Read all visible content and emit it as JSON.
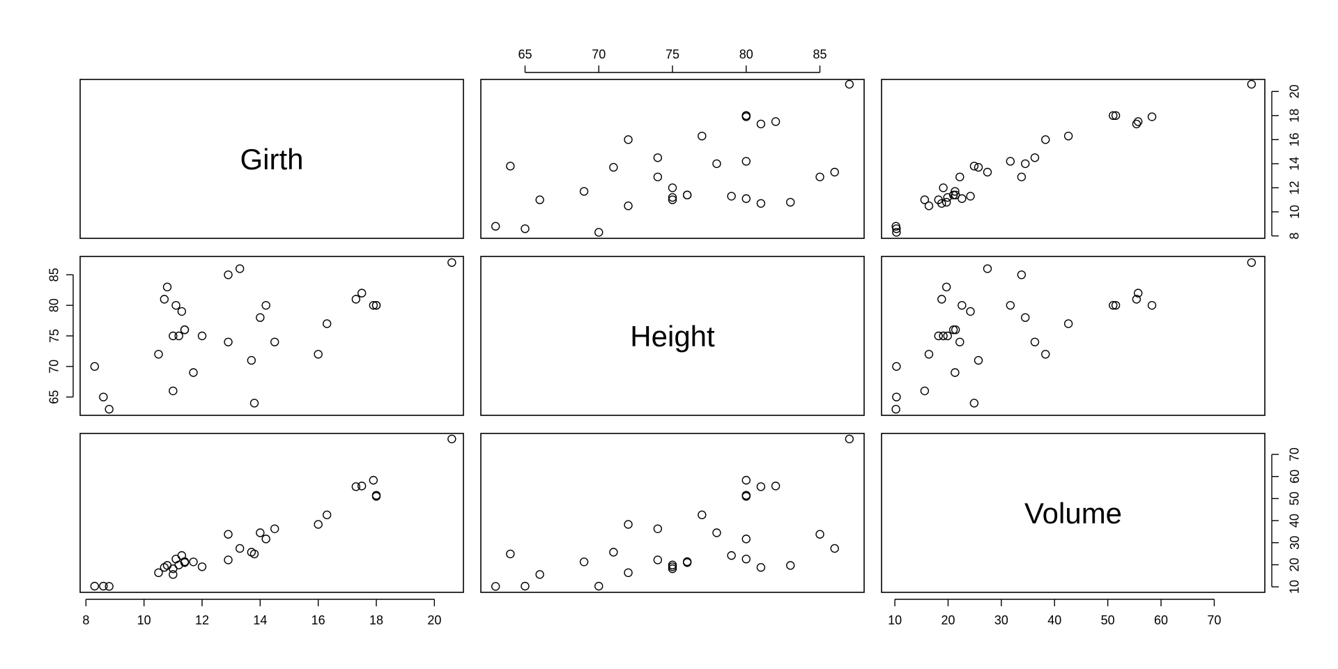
{
  "chart_data": {
    "type": "scatter",
    "variables": [
      {
        "name": "Girth",
        "lim": [
          7.8,
          21.0
        ],
        "ticks": [
          8,
          10,
          12,
          14,
          16,
          18,
          20
        ]
      },
      {
        "name": "Height",
        "lim": [
          62.0,
          88.0
        ],
        "ticks": [
          65,
          70,
          75,
          80,
          85
        ]
      },
      {
        "name": "Volume",
        "lim": [
          7.5,
          79.5
        ],
        "ticks": [
          10,
          20,
          30,
          40,
          50,
          60,
          70
        ]
      }
    ],
    "observations": [
      {
        "Girth": 8.3,
        "Height": 70,
        "Volume": 10.3
      },
      {
        "Girth": 8.6,
        "Height": 65,
        "Volume": 10.3
      },
      {
        "Girth": 8.8,
        "Height": 63,
        "Volume": 10.2
      },
      {
        "Girth": 10.5,
        "Height": 72,
        "Volume": 16.4
      },
      {
        "Girth": 10.7,
        "Height": 81,
        "Volume": 18.8
      },
      {
        "Girth": 10.8,
        "Height": 83,
        "Volume": 19.7
      },
      {
        "Girth": 11.0,
        "Height": 66,
        "Volume": 15.6
      },
      {
        "Girth": 11.0,
        "Height": 75,
        "Volume": 18.2
      },
      {
        "Girth": 11.1,
        "Height": 80,
        "Volume": 22.6
      },
      {
        "Girth": 11.2,
        "Height": 75,
        "Volume": 19.9
      },
      {
        "Girth": 11.3,
        "Height": 79,
        "Volume": 24.2
      },
      {
        "Girth": 11.4,
        "Height": 76,
        "Volume": 21.0
      },
      {
        "Girth": 11.4,
        "Height": 76,
        "Volume": 21.4
      },
      {
        "Girth": 11.7,
        "Height": 69,
        "Volume": 21.3
      },
      {
        "Girth": 12.0,
        "Height": 75,
        "Volume": 19.1
      },
      {
        "Girth": 12.9,
        "Height": 74,
        "Volume": 22.2
      },
      {
        "Girth": 12.9,
        "Height": 85,
        "Volume": 33.8
      },
      {
        "Girth": 13.3,
        "Height": 86,
        "Volume": 27.4
      },
      {
        "Girth": 13.7,
        "Height": 71,
        "Volume": 25.7
      },
      {
        "Girth": 13.8,
        "Height": 64,
        "Volume": 24.9
      },
      {
        "Girth": 14.0,
        "Height": 78,
        "Volume": 34.5
      },
      {
        "Girth": 14.2,
        "Height": 80,
        "Volume": 31.7
      },
      {
        "Girth": 14.5,
        "Height": 74,
        "Volume": 36.3
      },
      {
        "Girth": 16.0,
        "Height": 72,
        "Volume": 38.3
      },
      {
        "Girth": 16.3,
        "Height": 77,
        "Volume": 42.6
      },
      {
        "Girth": 17.3,
        "Height": 81,
        "Volume": 55.4
      },
      {
        "Girth": 17.5,
        "Height": 82,
        "Volume": 55.7
      },
      {
        "Girth": 17.9,
        "Height": 80,
        "Volume": 58.3
      },
      {
        "Girth": 18.0,
        "Height": 80,
        "Volume": 51.5
      },
      {
        "Girth": 18.0,
        "Height": 80,
        "Volume": 51.0
      },
      {
        "Girth": 20.6,
        "Height": 87,
        "Volume": 77.0
      }
    ],
    "grid": false,
    "legend": "none"
  }
}
